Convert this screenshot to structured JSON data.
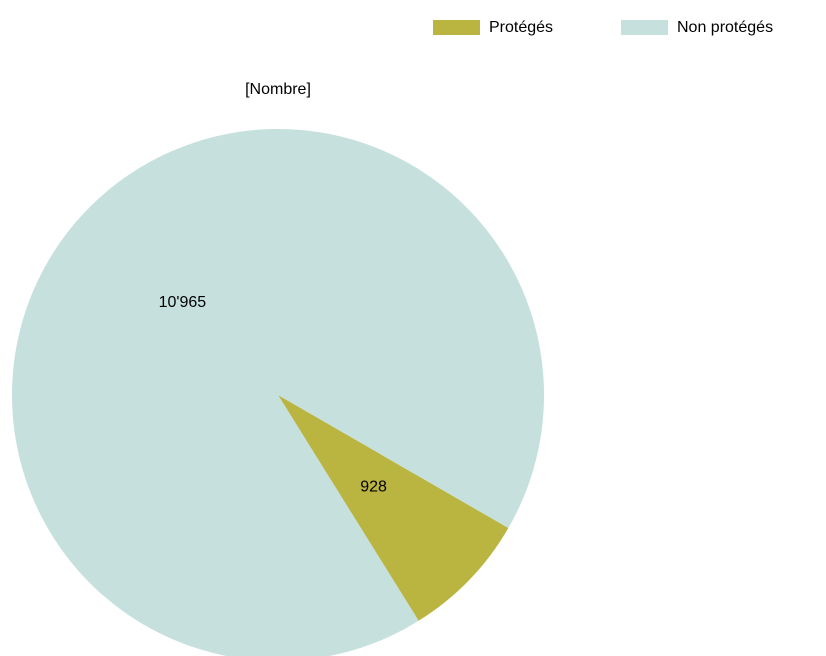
{
  "chart_data": {
    "type": "pie",
    "title": "[Nombre]",
    "categories": [
      "Protégés",
      "Non protégés"
    ],
    "values": [
      928,
      10965
    ],
    "value_labels": [
      "928",
      "10'965"
    ],
    "colors": [
      "#bab540",
      "#c5e0dd"
    ],
    "legend": "top-right"
  }
}
